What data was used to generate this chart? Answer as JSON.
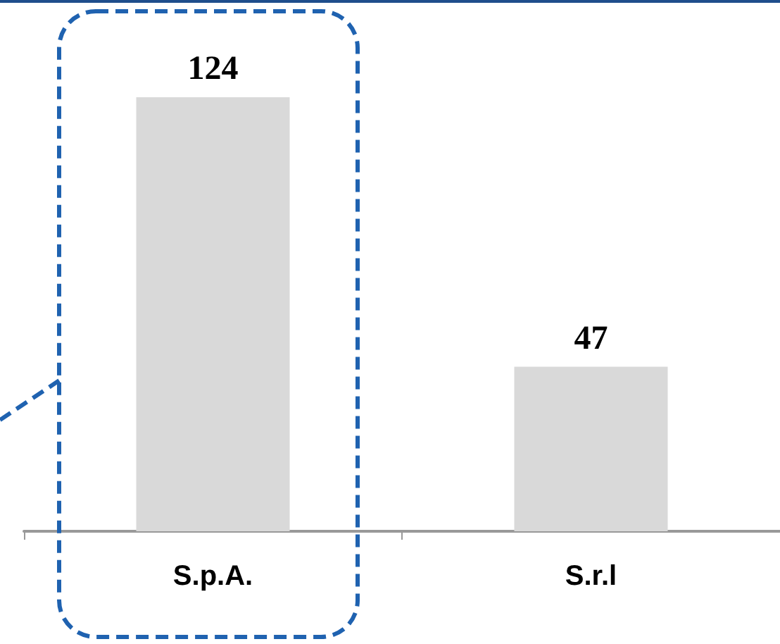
{
  "chart_data": {
    "type": "bar",
    "categories": [
      "S.p.A.",
      "S.r.l"
    ],
    "values": [
      124,
      47
    ],
    "color": "#d9d9d9",
    "data_labels": true,
    "grid": false
  }
}
